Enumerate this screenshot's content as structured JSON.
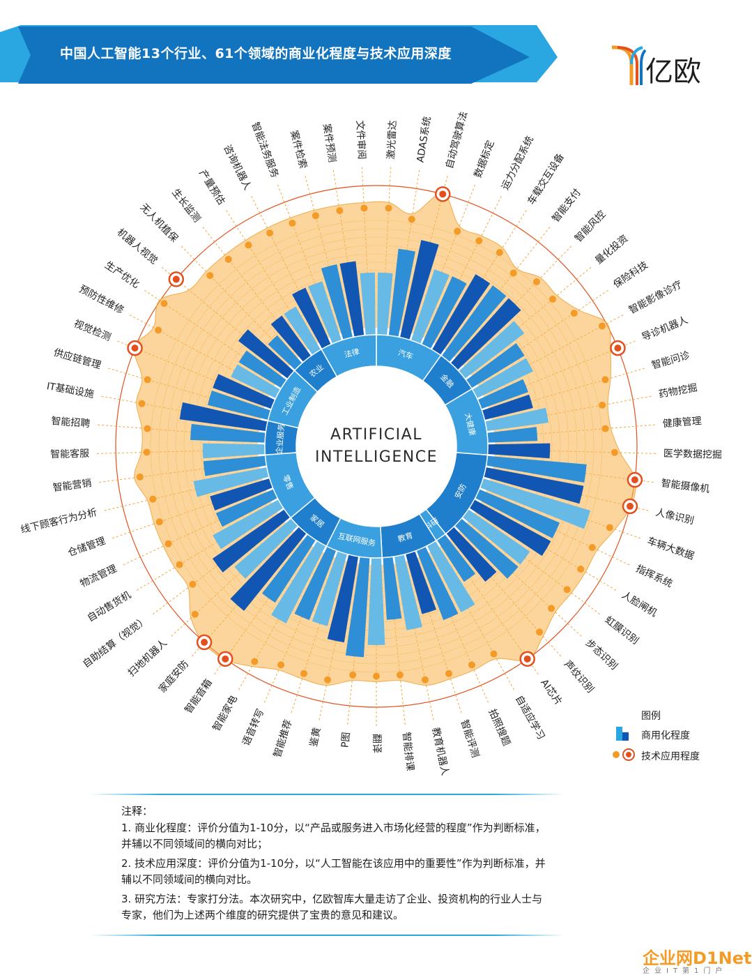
{
  "header": {
    "title": "中国人工智能13个行业、61个领域的商业化程度与技术应用深度"
  },
  "logo": {
    "text": "亿欧"
  },
  "center_label": {
    "line1": "ARTIFICIAL",
    "line2": "INTELLIGENCE"
  },
  "colors": {
    "banner": "#1273bf",
    "banner_light": "#2aa6e0",
    "bar_dark": "#1156b3",
    "bar_mid": "#2f8fd6",
    "bar_light": "#67b9e6",
    "orange": "#f39b26",
    "orange_light": "#fce3b5",
    "red_marker": "#e2501d"
  },
  "chart_data": {
    "type": "radial-bar",
    "industries": [
      {
        "name": "汽车",
        "domains": [
          "激光雷达",
          "ADAS系统",
          "自动驾驶算法",
          "数据标定",
          "运力分配系统",
          "车载交互设备"
        ]
      },
      {
        "name": "金融",
        "domains": [
          "智能支付",
          "智能风控",
          "量化投资",
          "保险科技"
        ]
      },
      {
        "name": "大健康",
        "domains": [
          "智能影像诊疗",
          "导诊机器人",
          "智能问诊",
          "药物挖掘",
          "健康管理",
          "医学数据挖掘"
        ]
      },
      {
        "name": "安防",
        "domains": [
          "智能摄像机",
          "人像识别",
          "车辆大数据",
          "指挥系统",
          "人脸闸机",
          "虹膜识别",
          "步态识别",
          "声纹识别"
        ]
      },
      {
        "name": "科研",
        "domains": [
          "AI芯片"
        ]
      },
      {
        "name": "教育",
        "domains": [
          "自适应学习",
          "拍照搜题",
          "智能评测",
          "教育机器人",
          "智能排课"
        ]
      },
      {
        "name": "互联网服务",
        "domains": [
          "翻译",
          "P图",
          "鉴黄",
          "智能推荐",
          "语音转写"
        ]
      },
      {
        "name": "家居",
        "domains": [
          "智能家电",
          "智能音箱",
          "家庭安防",
          "扫地机器人"
        ]
      },
      {
        "name": "零售",
        "domains": [
          "自助结算（视觉）",
          "自动售货机",
          "物流管理",
          "仓储管理",
          "线下顾客行为分析",
          "智能营销"
        ]
      },
      {
        "name": "企业服务",
        "domains": [
          "智能客服",
          "智能招聘",
          "IT基础设施"
        ]
      },
      {
        "name": "工业制造",
        "domains": [
          "供应链管理",
          "视觉检测",
          "预防性维修",
          "生产优化",
          "机器人视觉"
        ]
      },
      {
        "name": "农业",
        "domains": [
          "无人机植保",
          "生长监测",
          "产量预估"
        ]
      },
      {
        "name": "法律",
        "domains": [
          "咨询机器人",
          "智能法务服务",
          "案件检索",
          "案件预测",
          "文件审阅"
        ]
      }
    ],
    "commercialization": [
      5,
      7,
      8,
      6,
      6,
      7,
      7,
      7,
      6,
      5,
      5,
      4,
      4,
      5,
      4,
      5,
      8,
      8,
      9,
      7,
      7,
      6,
      6,
      5,
      4,
      6,
      6,
      5,
      6,
      5,
      7,
      8,
      7,
      6,
      6,
      7,
      6,
      8,
      6,
      7,
      6,
      5,
      5,
      6,
      5,
      5,
      6,
      7,
      5,
      5,
      4,
      4,
      5,
      3,
      4,
      4,
      5,
      5,
      6,
      6,
      5
    ],
    "tech_depth": [
      8,
      7,
      10,
      7,
      7,
      7,
      6,
      7,
      7,
      8,
      10,
      9,
      8,
      7,
      7,
      8,
      10,
      10,
      9,
      8,
      8,
      8,
      8,
      9,
      10,
      8,
      8,
      8,
      8,
      7,
      7,
      7,
      8,
      8,
      8,
      9,
      10,
      10,
      9,
      7,
      7,
      7,
      7,
      7,
      8,
      7,
      7,
      8,
      8,
      10,
      9,
      10,
      8,
      8,
      8,
      8,
      8,
      8,
      8,
      8,
      8
    ],
    "tech_highlight": [
      "自动驾驶算法",
      "导诊机器人",
      "智能摄像机",
      "人像识别",
      "AI芯片",
      "智能音箱",
      "家庭安防",
      "视觉检测",
      "机器人视觉"
    ],
    "scale_max": 10
  },
  "legend": {
    "title": "图例",
    "items": [
      {
        "label": "商用化程度"
      },
      {
        "label": "技术应用程度"
      }
    ]
  },
  "notes": {
    "title": "注释：",
    "items": [
      "1. 商业化程度：评价分值为1-10分，以“产品或服务进入市场化经营的程度”作为判断标准，并辅以不同领域间的横向对比；",
      "2. 技术应用深度：评价分值为1-10分，以“人工智能在该应用中的重要性”作为判断标准，并辅以不同领域间的横向对比。",
      "3. 研究方法：专家打分法。本次研究中，亿欧智库大量走访了企业、投资机构的行业人士与专家，他们为上述两个维度的研究提供了宝贵的意见和建议。"
    ]
  },
  "watermark": {
    "main": "企业网D1Net",
    "sub": "企业IT第1门户"
  }
}
